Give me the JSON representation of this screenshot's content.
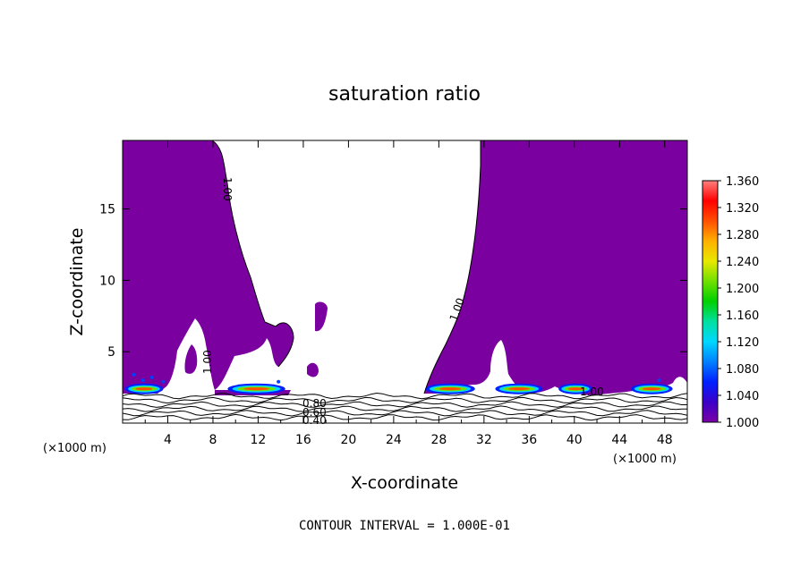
{
  "chart_data": {
    "type": "heatmap",
    "title": "saturation ratio",
    "xlabel": "X-coordinate",
    "ylabel": "Z-coordinate",
    "x_unit_label": "(×1000 m)",
    "x_unit_label_right": "(×1000 m)",
    "xlim": [
      0,
      50
    ],
    "ylim": [
      0,
      19.8
    ],
    "x_ticks": [
      "4",
      "8",
      "12",
      "16",
      "20",
      "24",
      "28",
      "32",
      "36",
      "40",
      "44",
      "48"
    ],
    "y_ticks": [
      "5",
      "10",
      "15"
    ],
    "x_tick_values": [
      4,
      8,
      12,
      16,
      20,
      24,
      28,
      32,
      36,
      40,
      44,
      48
    ],
    "y_tick_values": [
      5,
      10,
      15
    ],
    "colorbar": {
      "labels": [
        "1.360",
        "1.320",
        "1.280",
        "1.240",
        "1.200",
        "1.160",
        "1.120",
        "1.080",
        "1.040",
        "1.000"
      ],
      "min": 1.0,
      "max": 1.36,
      "colors": [
        "#7a00a6",
        "#3a00c8",
        "#0020ff",
        "#0080ff",
        "#00d8ff",
        "#00e0a0",
        "#00d000",
        "#70e000",
        "#e8e800",
        "#ffb000",
        "#ff5000",
        "#ff0000",
        "#ff8080"
      ]
    },
    "contour_labels": [
      "1.00",
      "1.00",
      "1.00",
      "1.00",
      "0.80",
      "0.60",
      "0.40"
    ],
    "footer": "CONTOUR INTERVAL = 1.000E-01"
  }
}
